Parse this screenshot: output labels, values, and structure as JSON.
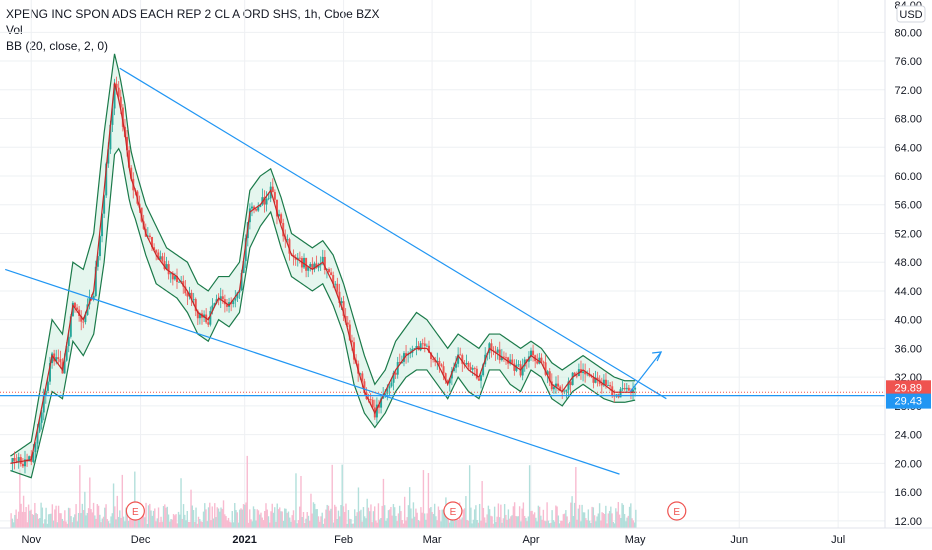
{
  "legend": {
    "title": "XPENG INC SPON ADS EACH REP 2 CL A ORD SHS, 1h, Cboe BZX",
    "vol": "Vol",
    "bb": "BB (20, close, 2, 0)"
  },
  "currency": "USD",
  "top_cut_label": "84.00",
  "price_tags": [
    {
      "value": "29.89",
      "price": 29.89,
      "color": "#ef5350"
    },
    {
      "value": "29.43",
      "price": 29.43,
      "color": "#2196f3"
    }
  ],
  "event_markers": [
    {
      "label": "E",
      "time": 1.2
    },
    {
      "label": "E",
      "time": 4.25
    },
    {
      "label": "E",
      "time": 6.4
    }
  ],
  "colors": {
    "candle_up": "#26a69a",
    "candle_down": "#ef5350",
    "bb_band": "#1b7a4a",
    "bb_fill": "#cfeee0",
    "bb_basis": "#c62828",
    "trendline": "#2196f3",
    "vol_up": "#b2dfdb",
    "vol_down": "#f8bbd0",
    "grid": "#eef0f3"
  },
  "chart_data": {
    "type": "line",
    "title": "XPENG INC SPON ADS EACH REP 2 CL A ORD SHS, 1h, Cboe BZX",
    "x_ticks": [
      {
        "label": "Nov",
        "t": 0.2
      },
      {
        "label": "Dec",
        "t": 1.25
      },
      {
        "label": "2021",
        "t": 2.25
      },
      {
        "label": "Feb",
        "t": 3.2
      },
      {
        "label": "Mar",
        "t": 4.05
      },
      {
        "label": "Apr",
        "t": 5.0
      },
      {
        "label": "May",
        "t": 6.0
      },
      {
        "label": "Jun",
        "t": 7.0
      },
      {
        "label": "Jul",
        "t": 7.95
      }
    ],
    "y_ticks": [
      12,
      16,
      20,
      24,
      28,
      32,
      36,
      40,
      44,
      48,
      52,
      56,
      60,
      64,
      68,
      72,
      76,
      80
    ],
    "ylim": [
      11,
      84.5
    ],
    "xlim": [
      -0.1,
      8.4
    ],
    "close_series": {
      "name": "Price",
      "t": [
        0.0,
        0.2,
        0.4,
        0.5,
        0.6,
        0.7,
        0.8,
        0.9,
        1.0,
        1.05,
        1.1,
        1.15,
        1.2,
        1.3,
        1.4,
        1.5,
        1.6,
        1.7,
        1.8,
        1.9,
        2.0,
        2.1,
        2.2,
        2.3,
        2.4,
        2.5,
        2.6,
        2.7,
        2.8,
        2.9,
        3.0,
        3.1,
        3.2,
        3.3,
        3.4,
        3.5,
        3.6,
        3.7,
        3.8,
        3.9,
        4.0,
        4.1,
        4.2,
        4.3,
        4.4,
        4.5,
        4.6,
        4.7,
        4.8,
        4.9,
        5.0,
        5.1,
        5.2,
        5.3,
        5.4,
        5.5,
        5.6,
        5.7,
        5.8,
        5.9,
        6.0
      ],
      "values": [
        20,
        20.5,
        35,
        33,
        42,
        40,
        44,
        58,
        73,
        70,
        66,
        60,
        58,
        52,
        49,
        47,
        46,
        44,
        41,
        40,
        43,
        42,
        44,
        55,
        56,
        58,
        53,
        49,
        48,
        47,
        48,
        45,
        41,
        35,
        30,
        27,
        30,
        33,
        35,
        36,
        36,
        34,
        31,
        35,
        33,
        32,
        36,
        35,
        34,
        33,
        35,
        34,
        31,
        30,
        32,
        33,
        32,
        31,
        29.9,
        29.9,
        29.89
      ]
    },
    "bb_upper": [
      21,
      23,
      40,
      38,
      48,
      47,
      52,
      66,
      77,
      74,
      70,
      64,
      61,
      56,
      53,
      50,
      49,
      48,
      45,
      44,
      46,
      46,
      48,
      58,
      60,
      61,
      57,
      52,
      51,
      50,
      51,
      49,
      45,
      40,
      35,
      31,
      33,
      37,
      39,
      41,
      40,
      38,
      36,
      38,
      37,
      36,
      38,
      38,
      37,
      36,
      37,
      36,
      34,
      33,
      34,
      35,
      34,
      33,
      32,
      31.5,
      31.5
    ],
    "bb_lower": [
      19,
      18,
      30,
      29,
      37,
      35,
      38,
      48,
      63,
      64,
      60,
      56,
      54,
      49,
      45,
      44,
      43,
      41,
      38,
      37,
      40,
      39,
      41,
      50,
      53,
      55,
      50,
      46,
      45,
      44,
      45,
      42,
      38,
      31,
      27,
      25,
      27,
      30,
      32,
      33,
      33,
      31,
      29,
      32,
      30,
      29,
      33,
      33,
      31,
      30,
      33,
      32,
      29,
      28,
      30,
      31,
      30,
      29,
      28.5,
      28.5,
      28.8
    ],
    "trendlines": [
      {
        "name": "upper-wedge",
        "t1": 1.05,
        "p1": 75,
        "t2": 6.3,
        "p2": 29.0
      },
      {
        "name": "lower-wedge",
        "t1": -0.05,
        "p1": 47,
        "t2": 5.85,
        "p2": 18.5
      },
      {
        "name": "horizontal-support",
        "t1": -0.1,
        "p1": 29.43,
        "t2": 8.4,
        "p2": 29.43
      },
      {
        "name": "breakout-arrow",
        "t1": 5.95,
        "p1": 29.9,
        "t2": 6.25,
        "p2": 35.5
      }
    ]
  }
}
